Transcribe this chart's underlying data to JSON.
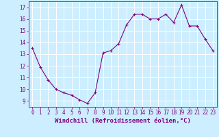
{
  "x": [
    0,
    1,
    2,
    3,
    4,
    5,
    6,
    7,
    8,
    9,
    10,
    11,
    12,
    13,
    14,
    15,
    16,
    17,
    18,
    19,
    20,
    21,
    22,
    23
  ],
  "y": [
    13.5,
    11.9,
    10.8,
    10.0,
    9.7,
    9.5,
    9.1,
    8.8,
    9.7,
    13.1,
    13.3,
    13.9,
    15.5,
    16.4,
    16.4,
    16.0,
    16.0,
    16.4,
    15.7,
    17.2,
    15.4,
    15.4,
    14.3,
    13.3
  ],
  "line_color": "#800080",
  "marker": "+",
  "marker_size": 3,
  "marker_lw": 0.8,
  "bg_color": "#cceeff",
  "grid_color": "#ffffff",
  "xlabel": "Windchill (Refroidissement éolien,°C)",
  "xlim": [
    -0.5,
    23.5
  ],
  "ylim": [
    8.5,
    17.5
  ],
  "yticks": [
    9,
    10,
    11,
    12,
    13,
    14,
    15,
    16,
    17
  ],
  "xticks": [
    0,
    1,
    2,
    3,
    4,
    5,
    6,
    7,
    8,
    9,
    10,
    11,
    12,
    13,
    14,
    15,
    16,
    17,
    18,
    19,
    20,
    21,
    22,
    23
  ],
  "tick_label_fontsize": 5.5,
  "xlabel_fontsize": 6.5,
  "line_width": 0.8
}
